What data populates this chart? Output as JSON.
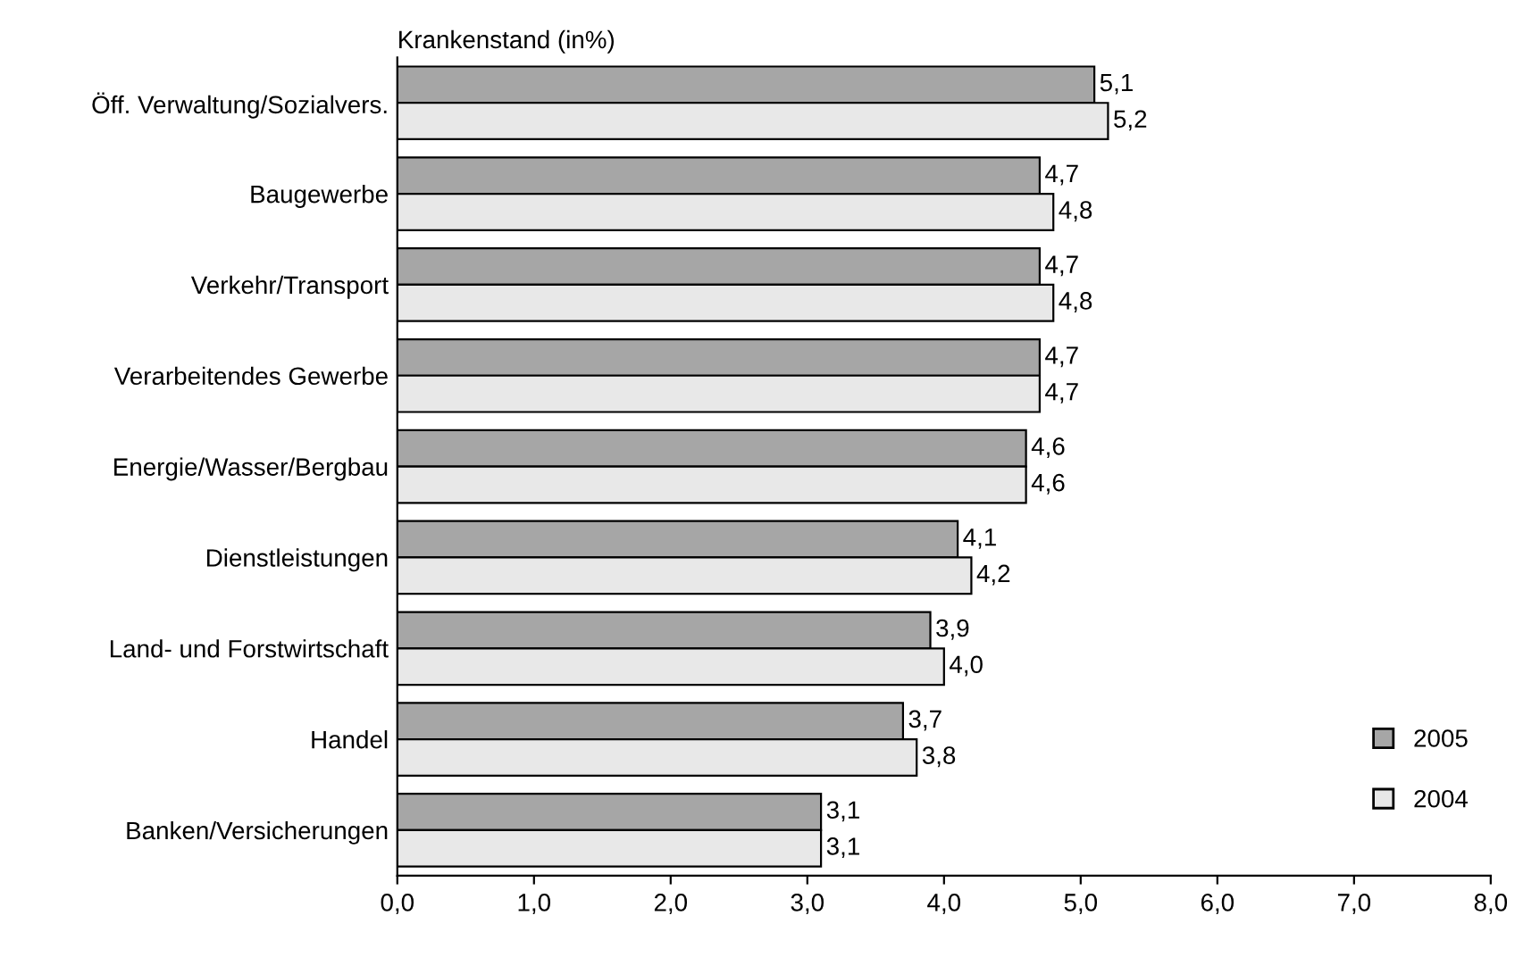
{
  "chart_data": {
    "type": "bar",
    "orientation": "horizontal",
    "xlabel": "Krankenstand (in%)",
    "categories": [
      "Öff. Verwaltung/Sozialvers.",
      "Baugewerbe",
      "Verkehr/Transport",
      "Verarbeitendes Gewerbe",
      "Energie/Wasser/Bergbau",
      "Dienstleistungen",
      "Land- und Forstwirtschaft",
      "Handel",
      "Banken/Versicherungen"
    ],
    "series": [
      {
        "name": "2005",
        "color": "#a6a6a6",
        "values": [
          5.1,
          4.7,
          4.7,
          4.7,
          4.6,
          4.1,
          3.9,
          3.7,
          3.1
        ],
        "value_labels": [
          "5,1",
          "4,7",
          "4,7",
          "4,7",
          "4,6",
          "4,1",
          "3,9",
          "3,7",
          "3,1"
        ]
      },
      {
        "name": "2004",
        "color": "#e8e8e8",
        "values": [
          5.2,
          4.8,
          4.8,
          4.7,
          4.6,
          4.2,
          4.0,
          3.8,
          3.1
        ],
        "value_labels": [
          "5,2",
          "4,8",
          "4,8",
          "4,7",
          "4,6",
          "4,2",
          "4,0",
          "3,8",
          "3,1"
        ]
      }
    ],
    "xlim": [
      0,
      8
    ],
    "xticks": [
      {
        "value": 0,
        "label": "0,0"
      },
      {
        "value": 1,
        "label": "1,0"
      },
      {
        "value": 2,
        "label": "2,0"
      },
      {
        "value": 3,
        "label": "3,0"
      },
      {
        "value": 4,
        "label": "4,0"
      },
      {
        "value": 5,
        "label": "5,0"
      },
      {
        "value": 6,
        "label": "6,0"
      },
      {
        "value": 7,
        "label": "7,0"
      },
      {
        "value": 8,
        "label": "8,0"
      }
    ],
    "grid": false,
    "legend": "bottom right"
  }
}
